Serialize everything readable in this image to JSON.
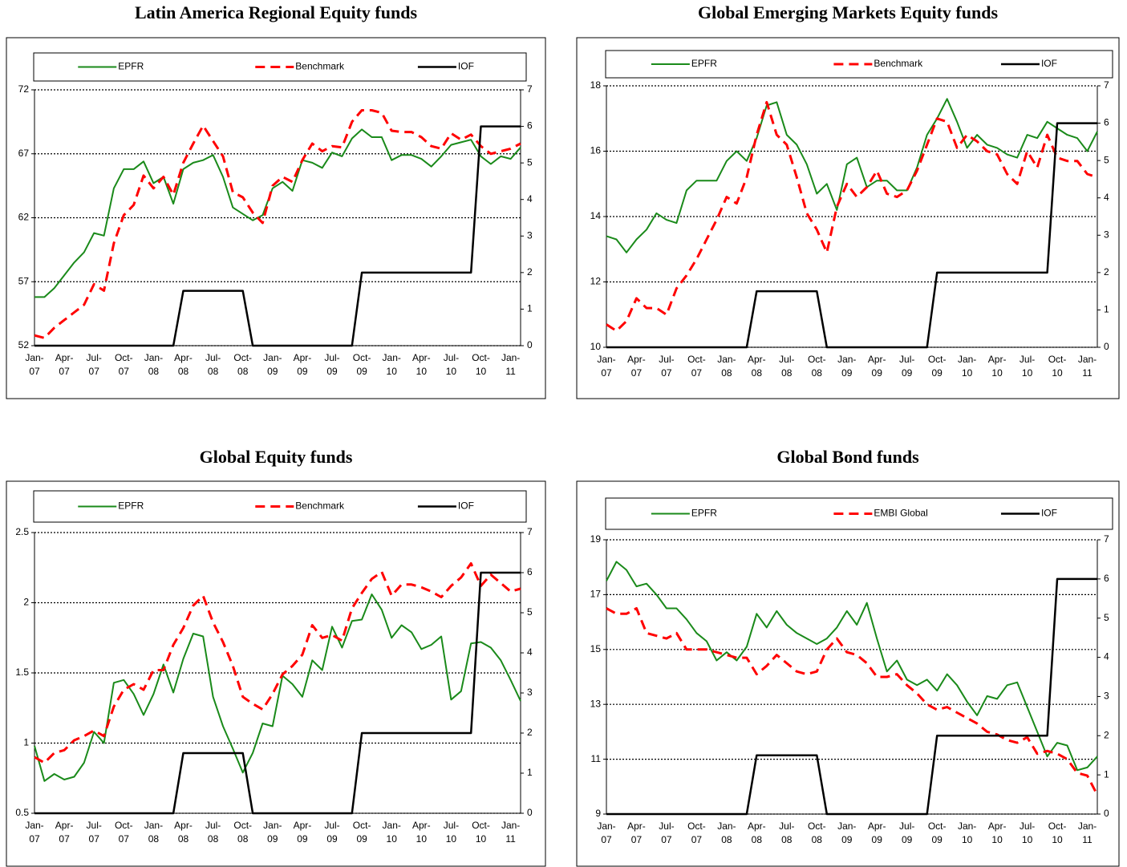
{
  "chart_data": [
    {
      "type": "line",
      "title": "Latin America Regional Equity funds",
      "categories": [
        "Jan-07",
        null,
        null,
        "Apr-07",
        null,
        null,
        "Jul-07",
        null,
        null,
        "Oct-07",
        null,
        null,
        "Jan-08",
        null,
        null,
        "Apr-08",
        null,
        null,
        "Jul-08",
        null,
        null,
        "Oct-08",
        null,
        null,
        "Jan-09",
        null,
        null,
        "Apr-09",
        null,
        null,
        "Jul-09",
        null,
        null,
        "Oct-09",
        null,
        null,
        "Jan-10",
        null,
        null,
        "Apr-10",
        null,
        null,
        "Jul-10",
        null,
        null,
        "Oct-10",
        null,
        null,
        "Jan-11",
        null
      ],
      "series": [
        {
          "name": "EPFR",
          "color": "#1a8a1a",
          "style": "solid",
          "values": [
            55.8,
            55.8,
            56.5,
            57.5,
            58.5,
            59.3,
            60.8,
            60.6,
            64.3,
            65.8,
            65.8,
            66.4,
            64.7,
            65.2,
            63.1,
            65.8,
            66.3,
            66.5,
            66.9,
            65.2,
            62.8,
            62.3,
            61.8,
            62.2,
            64.3,
            64.8,
            64.1,
            66.5,
            66.3,
            65.9,
            67.1,
            66.8,
            68.2,
            68.9,
            68.3,
            68.3,
            66.5,
            66.9,
            66.9,
            66.6,
            66.0,
            66.8,
            67.7,
            67.9,
            68.1,
            66.8,
            66.2,
            66.8,
            66.6,
            67.5
          ]
        },
        {
          "name": "Benchmark",
          "color": "#ff0000",
          "style": "dashed",
          "values": [
            52.8,
            52.6,
            53.4,
            54.0,
            54.6,
            55.2,
            56.8,
            56.3,
            60.0,
            62.2,
            63.0,
            65.3,
            64.3,
            65.2,
            63.8,
            66.3,
            67.8,
            69.2,
            68.0,
            66.8,
            64.0,
            63.6,
            62.4,
            61.6,
            64.5,
            65.2,
            64.8,
            66.5,
            67.8,
            67.2,
            67.6,
            67.5,
            69.5,
            70.4,
            70.4,
            70.2,
            68.8,
            68.7,
            68.7,
            68.3,
            67.6,
            67.4,
            68.6,
            68.1,
            68.5,
            67.6,
            67.0,
            67.2,
            67.4,
            67.8
          ]
        },
        {
          "name": "IOF",
          "color": "#000000",
          "style": "solid",
          "axis": "y2",
          "values": [
            0,
            0,
            0,
            0,
            0,
            0,
            0,
            0,
            0,
            0,
            0,
            0,
            0,
            0,
            0,
            1.5,
            1.5,
            1.5,
            1.5,
            1.5,
            1.5,
            1.5,
            0,
            0,
            0,
            0,
            0,
            0,
            0,
            0,
            0,
            0,
            0,
            2,
            2,
            2,
            2,
            2,
            2,
            2,
            2,
            2,
            2,
            2,
            2,
            6,
            6,
            6,
            6,
            6
          ]
        }
      ],
      "ylim": [
        52,
        72
      ],
      "yticks": [
        52,
        57,
        62,
        67,
        72
      ],
      "y2lim": [
        0,
        7
      ],
      "y2ticks": [
        0,
        1,
        2,
        3,
        4,
        5,
        6,
        7
      ],
      "grid": true,
      "legend": "top"
    },
    {
      "type": "line",
      "title": "Global Emerging Markets Equity funds",
      "categories": [
        "Jan-07",
        null,
        null,
        "Apr-07",
        null,
        null,
        "Jul-07",
        null,
        null,
        "Oct-07",
        null,
        null,
        "Jan-08",
        null,
        null,
        "Apr-08",
        null,
        null,
        "Jul-08",
        null,
        null,
        "Oct-08",
        null,
        null,
        "Jan-09",
        null,
        null,
        "Apr-09",
        null,
        null,
        "Jul-09",
        null,
        null,
        "Oct-09",
        null,
        null,
        "Jan-10",
        null,
        null,
        "Apr-10",
        null,
        null,
        "Jul-10",
        null,
        null,
        "Oct-10",
        null,
        null,
        "Jan-11",
        null
      ],
      "series": [
        {
          "name": "EPFR",
          "color": "#1a8a1a",
          "style": "solid",
          "values": [
            13.4,
            13.3,
            12.9,
            13.3,
            13.6,
            14.1,
            13.9,
            13.8,
            14.8,
            15.1,
            15.1,
            15.1,
            15.7,
            16.0,
            15.7,
            16.4,
            17.4,
            17.5,
            16.5,
            16.2,
            15.6,
            14.7,
            15.0,
            14.2,
            15.6,
            15.8,
            14.9,
            15.1,
            15.1,
            14.8,
            14.8,
            15.5,
            16.5,
            17.0,
            17.6,
            16.9,
            16.1,
            16.5,
            16.2,
            16.1,
            15.9,
            15.8,
            16.5,
            16.4,
            16.9,
            16.7,
            16.5,
            16.4,
            16.0,
            16.6
          ]
        },
        {
          "name": "Benchmark",
          "color": "#ff0000",
          "style": "dashed",
          "values": [
            10.7,
            10.5,
            10.8,
            11.5,
            11.2,
            11.2,
            11.0,
            11.8,
            12.2,
            12.7,
            13.3,
            13.9,
            14.6,
            14.4,
            15.2,
            16.5,
            17.5,
            16.5,
            16.2,
            15.2,
            14.1,
            13.6,
            12.9,
            14.3,
            15.0,
            14.6,
            14.9,
            15.4,
            14.7,
            14.6,
            14.8,
            15.4,
            16.2,
            17.0,
            16.9,
            16.1,
            16.5,
            16.3,
            16.0,
            15.9,
            15.3,
            15.0,
            16.0,
            15.5,
            16.5,
            15.8,
            15.7,
            15.7,
            15.3,
            15.2
          ]
        },
        {
          "name": "IOF",
          "color": "#000000",
          "style": "solid",
          "axis": "y2",
          "values": [
            0,
            0,
            0,
            0,
            0,
            0,
            0,
            0,
            0,
            0,
            0,
            0,
            0,
            0,
            0,
            1.5,
            1.5,
            1.5,
            1.5,
            1.5,
            1.5,
            1.5,
            0,
            0,
            0,
            0,
            0,
            0,
            0,
            0,
            0,
            0,
            0,
            2,
            2,
            2,
            2,
            2,
            2,
            2,
            2,
            2,
            2,
            2,
            2,
            6,
            6,
            6,
            6,
            6
          ]
        }
      ],
      "ylim": [
        10,
        18
      ],
      "yticks": [
        10,
        12,
        14,
        16,
        18
      ],
      "y2lim": [
        0,
        7
      ],
      "y2ticks": [
        0,
        1,
        2,
        3,
        4,
        5,
        6,
        7
      ],
      "grid": true,
      "legend": "top"
    },
    {
      "type": "line",
      "title": "Global Equity funds",
      "categories": [
        "Jan-07",
        null,
        null,
        "Apr-07",
        null,
        null,
        "Jul-07",
        null,
        null,
        "Oct-07",
        null,
        null,
        "Jan-08",
        null,
        null,
        "Apr-08",
        null,
        null,
        "Jul-08",
        null,
        null,
        "Oct-08",
        null,
        null,
        "Jan-09",
        null,
        null,
        "Apr-09",
        null,
        null,
        "Jul-09",
        null,
        null,
        "Oct-09",
        null,
        null,
        "Jan-10",
        null,
        null,
        "Apr-10",
        null,
        null,
        "Jul-10",
        null,
        null,
        "Oct-10",
        null,
        null,
        "Jan-11",
        null
      ],
      "series": [
        {
          "name": "EPFR",
          "color": "#1a8a1a",
          "style": "solid",
          "values": [
            0.98,
            0.73,
            0.78,
            0.74,
            0.76,
            0.86,
            1.08,
            1.0,
            1.43,
            1.45,
            1.35,
            1.2,
            1.35,
            1.56,
            1.36,
            1.6,
            1.78,
            1.76,
            1.33,
            1.12,
            0.96,
            0.79,
            0.93,
            1.14,
            1.12,
            1.48,
            1.42,
            1.33,
            1.59,
            1.52,
            1.83,
            1.68,
            1.87,
            1.88,
            2.06,
            1.95,
            1.75,
            1.84,
            1.79,
            1.67,
            1.7,
            1.76,
            1.31,
            1.37,
            1.71,
            1.72,
            1.68,
            1.59,
            1.45,
            1.3
          ]
        },
        {
          "name": "Benchmark",
          "color": "#ff0000",
          "style": "dashed",
          "values": [
            0.9,
            0.86,
            0.93,
            0.95,
            1.02,
            1.05,
            1.09,
            1.05,
            1.26,
            1.38,
            1.42,
            1.38,
            1.52,
            1.52,
            1.7,
            1.82,
            1.98,
            2.05,
            1.86,
            1.72,
            1.55,
            1.33,
            1.28,
            1.24,
            1.35,
            1.49,
            1.55,
            1.63,
            1.84,
            1.75,
            1.77,
            1.73,
            1.96,
            2.07,
            2.17,
            2.22,
            2.05,
            2.13,
            2.13,
            2.11,
            2.08,
            2.04,
            2.12,
            2.18,
            2.28,
            2.12,
            2.2,
            2.14,
            2.08,
            2.1
          ]
        },
        {
          "name": "IOF",
          "color": "#000000",
          "style": "solid",
          "axis": "y2",
          "values": [
            0,
            0,
            0,
            0,
            0,
            0,
            0,
            0,
            0,
            0,
            0,
            0,
            0,
            0,
            0,
            1.5,
            1.5,
            1.5,
            1.5,
            1.5,
            1.5,
            1.5,
            0,
            0,
            0,
            0,
            0,
            0,
            0,
            0,
            0,
            0,
            0,
            2,
            2,
            2,
            2,
            2,
            2,
            2,
            2,
            2,
            2,
            2,
            2,
            6,
            6,
            6,
            6,
            6
          ]
        }
      ],
      "ylim": [
        0.5,
        2.5
      ],
      "yticks": [
        0.5,
        1,
        1.5,
        2,
        2.5
      ],
      "y2lim": [
        0,
        7
      ],
      "y2ticks": [
        0,
        1,
        2,
        3,
        4,
        5,
        6,
        7
      ],
      "grid": true,
      "legend": "top"
    },
    {
      "type": "line",
      "title": "Global Bond funds",
      "categories": [
        "Jan-07",
        null,
        null,
        "Apr-07",
        null,
        null,
        "Jul-07",
        null,
        null,
        "Oct-07",
        null,
        null,
        "Jan-08",
        null,
        null,
        "Apr-08",
        null,
        null,
        "Jul-08",
        null,
        null,
        "Oct-08",
        null,
        null,
        "Jan-09",
        null,
        null,
        "Apr-09",
        null,
        null,
        "Jul-09",
        null,
        null,
        "Oct-09",
        null,
        null,
        "Jan-10",
        null,
        null,
        "Apr-10",
        null,
        null,
        "Jul-10",
        null,
        null,
        "Oct-10",
        null,
        null,
        "Jan-11",
        null
      ],
      "series": [
        {
          "name": "EPFR",
          "color": "#1a8a1a",
          "style": "solid",
          "values": [
            17.5,
            18.2,
            17.9,
            17.3,
            17.4,
            17.0,
            16.5,
            16.5,
            16.1,
            15.6,
            15.3,
            14.6,
            14.9,
            14.6,
            15.1,
            16.3,
            15.8,
            16.4,
            15.9,
            15.6,
            15.4,
            15.2,
            15.4,
            15.8,
            16.4,
            15.9,
            16.7,
            15.4,
            14.2,
            14.6,
            13.9,
            13.7,
            13.9,
            13.5,
            14.1,
            13.7,
            13.1,
            12.6,
            13.3,
            13.2,
            13.7,
            13.8,
            12.9,
            12.0,
            11.1,
            11.6,
            11.5,
            10.6,
            10.7,
            11.1
          ]
        },
        {
          "name": "EMBI Global",
          "color": "#ff0000",
          "style": "dashed",
          "values": [
            16.5,
            16.3,
            16.3,
            16.5,
            15.6,
            15.5,
            15.4,
            15.6,
            15.0,
            15.0,
            15.0,
            14.9,
            14.8,
            14.7,
            14.7,
            14.1,
            14.4,
            14.8,
            14.5,
            14.2,
            14.1,
            14.2,
            15.0,
            15.4,
            14.9,
            14.8,
            14.5,
            14.0,
            14.0,
            14.1,
            13.7,
            13.4,
            13.0,
            12.8,
            12.9,
            12.7,
            12.5,
            12.3,
            12.0,
            11.9,
            11.7,
            11.6,
            11.8,
            11.2,
            11.3,
            11.2,
            11.0,
            10.5,
            10.4,
            9.7
          ]
        },
        {
          "name": "IOF",
          "color": "#000000",
          "style": "solid",
          "axis": "y2",
          "values": [
            0,
            0,
            0,
            0,
            0,
            0,
            0,
            0,
            0,
            0,
            0,
            0,
            0,
            0,
            0,
            1.5,
            1.5,
            1.5,
            1.5,
            1.5,
            1.5,
            1.5,
            0,
            0,
            0,
            0,
            0,
            0,
            0,
            0,
            0,
            0,
            0,
            2,
            2,
            2,
            2,
            2,
            2,
            2,
            2,
            2,
            2,
            2,
            2,
            6,
            6,
            6,
            6,
            6
          ]
        }
      ],
      "ylim": [
        9,
        19
      ],
      "yticks": [
        9,
        11,
        13,
        15,
        17,
        19
      ],
      "y2lim": [
        0,
        7
      ],
      "y2ticks": [
        0,
        1,
        2,
        3,
        4,
        5,
        6,
        7
      ],
      "grid": true,
      "legend": "top"
    }
  ]
}
